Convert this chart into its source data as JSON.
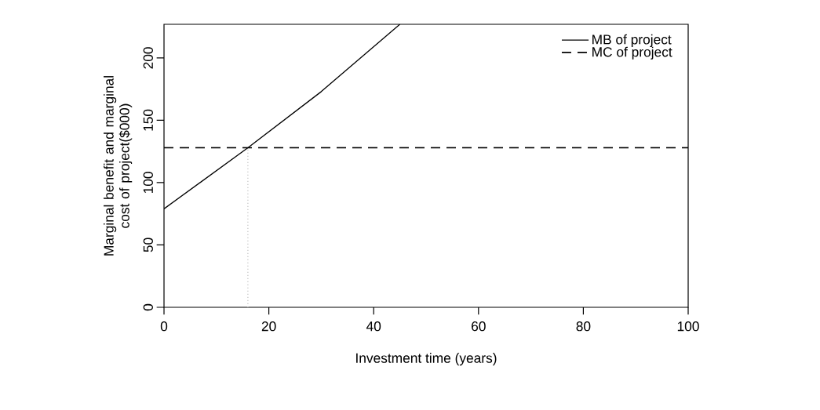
{
  "chart_data": {
    "type": "line",
    "xlabel": "Investment time (years)",
    "ylabel": "Marginal benefit and marginal cost of project($000)",
    "xlim": [
      0,
      100
    ],
    "ylim": [
      0,
      227
    ],
    "xticks": [
      0,
      20,
      40,
      60,
      80,
      100
    ],
    "yticks": [
      0,
      50,
      100,
      150,
      200
    ],
    "legend": "top right",
    "grid": false,
    "series": [
      {
        "name": "MB of project",
        "color": "#000000",
        "line_style": "solid",
        "x": [
          0,
          16,
          30,
          45
        ],
        "values": [
          79,
          128,
          173,
          227
        ]
      },
      {
        "name": "MC of project",
        "color": "#000000",
        "line_style": "dashed",
        "x": [
          0,
          100
        ],
        "values": [
          128,
          128
        ]
      },
      {
        "color": "#c8c8c8",
        "line_style": "dotted",
        "x": [
          16,
          16
        ],
        "values": [
          0,
          128
        ]
      }
    ]
  }
}
